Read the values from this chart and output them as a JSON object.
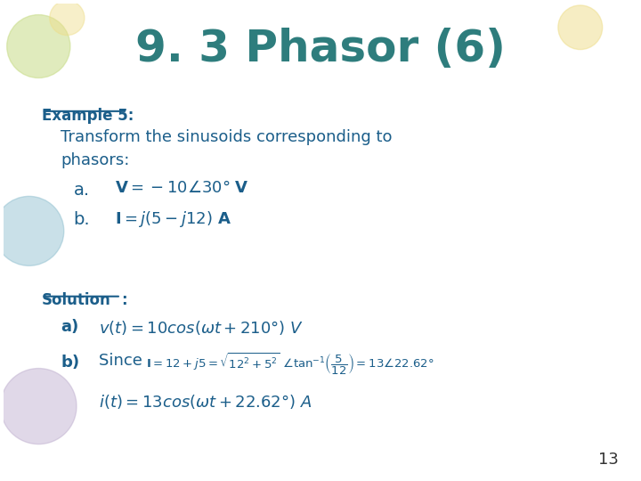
{
  "title": "9. 3 Phasor (6)",
  "title_color": "#2E7D7D",
  "title_fontsize": 36,
  "bg_color": "#FFFFFF",
  "slide_number": "13",
  "example_label": "Example 5:",
  "body_color": "#1B5E8A"
}
